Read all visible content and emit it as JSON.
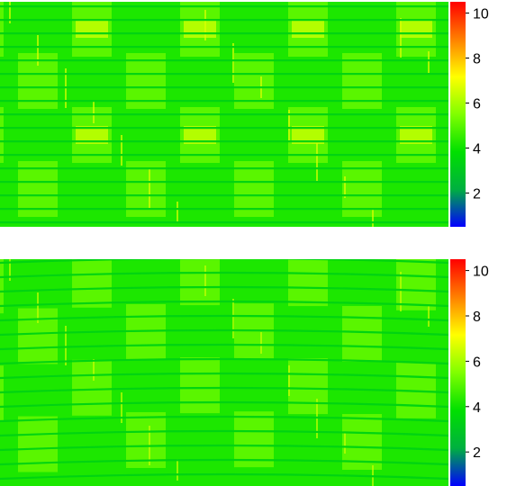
{
  "chart_data": [
    {
      "type": "heatmap",
      "title": "",
      "xlabel": "",
      "ylabel": "",
      "colorbar": {
        "range": [
          0.5,
          10.5
        ],
        "ticks": [
          2,
          4,
          6,
          8,
          10
        ],
        "tick_labels": [
          "2",
          "4",
          "6",
          "8",
          "10"
        ],
        "colormap": [
          "#0000ff",
          "#00b040",
          "#00e000",
          "#80ff00",
          "#ffff00",
          "#ff8000",
          "#ff0000"
        ]
      },
      "background_value": 4.2,
      "horizontal_seam_value": 3.4,
      "block_value": 5.0,
      "overlap_value": 6.3,
      "curved_rows": false
    },
    {
      "type": "heatmap",
      "title": "",
      "xlabel": "",
      "ylabel": "",
      "colorbar": {
        "range": [
          0.5,
          10.5
        ],
        "ticks": [
          2,
          4,
          6,
          8,
          10
        ],
        "tick_labels": [
          "2",
          "4",
          "6",
          "8",
          "10"
        ],
        "colormap": [
          "#0000ff",
          "#00b040",
          "#00e000",
          "#80ff00",
          "#ffff00",
          "#ff8000",
          "#ff0000"
        ]
      },
      "background_value": 4.2,
      "horizontal_seam_value": 3.4,
      "block_value": 5.0,
      "overlap_value": 6.0,
      "curved_rows": true
    }
  ]
}
